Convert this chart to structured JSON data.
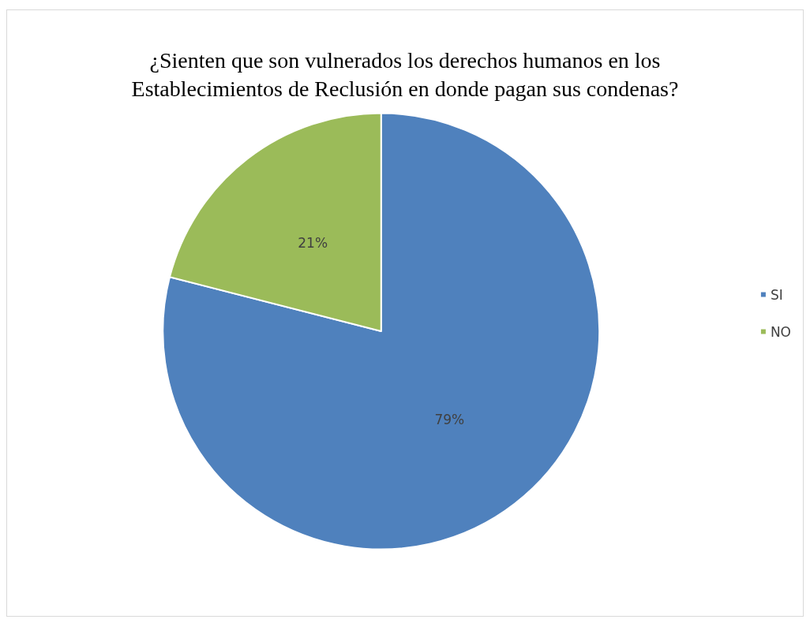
{
  "chart_data": {
    "type": "pie",
    "title": "¿Sienten que son vulnerados los derechos humanos en los\nEstablecimientos de Reclusión en donde pagan sus condenas?",
    "categories": [
      "SI",
      "NO"
    ],
    "values": [
      79,
      21
    ],
    "colors": [
      "#4f81bd",
      "#9bbb59"
    ],
    "value_labels": [
      "79%",
      "21%"
    ],
    "legend": "right"
  }
}
